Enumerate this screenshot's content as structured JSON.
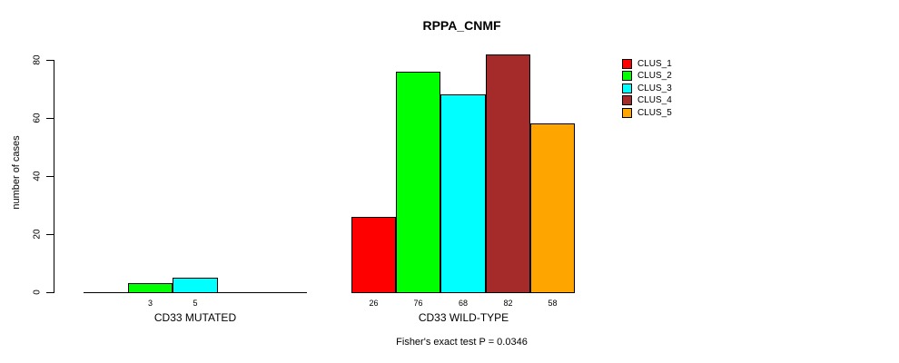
{
  "chart_data": {
    "type": "bar",
    "title": "RPPA_CNMF",
    "ylabel": "number of cases",
    "xlabel": "",
    "ylim": [
      0,
      80
    ],
    "yticks": [
      0,
      20,
      40,
      60,
      80
    ],
    "grid": false,
    "legend": {
      "position": "right",
      "entries": [
        {
          "label": "CLUS_1",
          "color": "#FF0000"
        },
        {
          "label": "CLUS_2",
          "color": "#00FF00"
        },
        {
          "label": "CLUS_3",
          "color": "#00FFFF"
        },
        {
          "label": "CLUS_4",
          "color": "#A52A2A"
        },
        {
          "label": "CLUS_5",
          "color": "#FFA500"
        }
      ]
    },
    "groups": [
      {
        "category": "CD33 MUTATED",
        "bars": [
          {
            "cluster": "CLUS_2",
            "slot": 1,
            "value": 3
          },
          {
            "cluster": "CLUS_3",
            "slot": 2,
            "value": 5
          }
        ]
      },
      {
        "category": "CD33 WILD-TYPE",
        "bars": [
          {
            "cluster": "CLUS_1",
            "slot": 0,
            "value": 26
          },
          {
            "cluster": "CLUS_2",
            "slot": 1,
            "value": 76
          },
          {
            "cluster": "CLUS_3",
            "slot": 2,
            "value": 68
          },
          {
            "cluster": "CLUS_4",
            "slot": 3,
            "value": 82
          },
          {
            "cluster": "CLUS_5",
            "slot": 4,
            "value": 58
          }
        ]
      }
    ],
    "annotation": "Fisher's exact test P = 0.0346"
  }
}
